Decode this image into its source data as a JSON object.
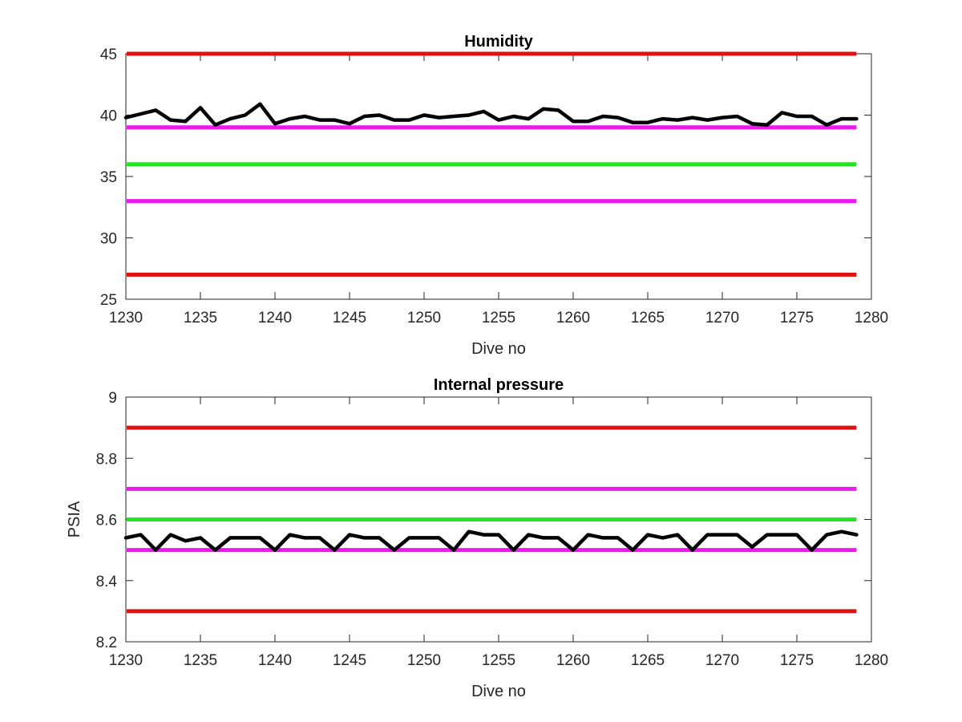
{
  "chart_data": [
    {
      "type": "line",
      "title": "Humidity",
      "xlabel": "Dive no",
      "ylabel": "",
      "xlim": [
        1230,
        1280
      ],
      "ylim": [
        25,
        45
      ],
      "xticks": [
        1230,
        1235,
        1240,
        1245,
        1250,
        1255,
        1260,
        1265,
        1270,
        1275,
        1280
      ],
      "yticks": [
        25,
        30,
        35,
        40,
        45
      ],
      "grid": false,
      "reference_lines": [
        {
          "y": 45,
          "color": "#e01010"
        },
        {
          "y": 39,
          "color": "#ee18ee"
        },
        {
          "y": 36,
          "color": "#22e622"
        },
        {
          "y": 33,
          "color": "#ee18ee"
        },
        {
          "y": 27,
          "color": "#e01010"
        }
      ],
      "series": [
        {
          "color": "#000000",
          "x": [
            1230,
            1231,
            1232,
            1233,
            1234,
            1235,
            1236,
            1237,
            1238,
            1239,
            1240,
            1241,
            1242,
            1243,
            1244,
            1245,
            1246,
            1247,
            1248,
            1249,
            1250,
            1251,
            1252,
            1253,
            1254,
            1255,
            1256,
            1257,
            1258,
            1259,
            1260,
            1261,
            1262,
            1263,
            1264,
            1265,
            1266,
            1267,
            1268,
            1269,
            1270,
            1271,
            1272,
            1273,
            1274,
            1275,
            1276,
            1277,
            1278,
            1279
          ],
          "y": [
            39.8,
            40.1,
            40.4,
            39.6,
            39.5,
            40.6,
            39.2,
            39.7,
            40.0,
            40.9,
            39.3,
            39.7,
            39.9,
            39.6,
            39.6,
            39.3,
            39.9,
            40.0,
            39.6,
            39.6,
            40.0,
            39.8,
            39.9,
            40.0,
            40.3,
            39.6,
            39.9,
            39.7,
            40.5,
            40.4,
            39.5,
            39.5,
            39.9,
            39.8,
            39.4,
            39.4,
            39.7,
            39.6,
            39.8,
            39.6,
            39.8,
            39.9,
            39.3,
            39.2,
            40.2,
            39.9,
            39.9,
            39.2,
            39.7,
            39.7
          ]
        }
      ]
    },
    {
      "type": "line",
      "title": "Internal pressure",
      "xlabel": "Dive no",
      "ylabel": "PSIA",
      "xlim": [
        1230,
        1280
      ],
      "ylim": [
        8.2,
        9
      ],
      "xticks": [
        1230,
        1235,
        1240,
        1245,
        1250,
        1255,
        1260,
        1265,
        1270,
        1275,
        1280
      ],
      "yticks": [
        "8.2",
        "8.4",
        "8.6",
        "8.8",
        "9"
      ],
      "grid": false,
      "reference_lines": [
        {
          "y": 8.9,
          "color": "#e01010"
        },
        {
          "y": 8.7,
          "color": "#ee18ee"
        },
        {
          "y": 8.6,
          "color": "#22e622"
        },
        {
          "y": 8.5,
          "color": "#ee18ee"
        },
        {
          "y": 8.3,
          "color": "#e01010"
        }
      ],
      "series": [
        {
          "color": "#000000",
          "x": [
            1230,
            1231,
            1232,
            1233,
            1234,
            1235,
            1236,
            1237,
            1238,
            1239,
            1240,
            1241,
            1242,
            1243,
            1244,
            1245,
            1246,
            1247,
            1248,
            1249,
            1250,
            1251,
            1252,
            1253,
            1254,
            1255,
            1256,
            1257,
            1258,
            1259,
            1260,
            1261,
            1262,
            1263,
            1264,
            1265,
            1266,
            1267,
            1268,
            1269,
            1270,
            1271,
            1272,
            1273,
            1274,
            1275,
            1276,
            1277,
            1278,
            1279
          ],
          "y": [
            8.54,
            8.55,
            8.5,
            8.55,
            8.53,
            8.54,
            8.5,
            8.54,
            8.54,
            8.54,
            8.5,
            8.55,
            8.54,
            8.54,
            8.5,
            8.55,
            8.54,
            8.54,
            8.5,
            8.54,
            8.54,
            8.54,
            8.5,
            8.56,
            8.55,
            8.55,
            8.5,
            8.55,
            8.54,
            8.54,
            8.5,
            8.55,
            8.54,
            8.54,
            8.5,
            8.55,
            8.54,
            8.55,
            8.5,
            8.55,
            8.55,
            8.55,
            8.51,
            8.55,
            8.55,
            8.55,
            8.5,
            8.55,
            8.56,
            8.55
          ]
        }
      ]
    }
  ]
}
